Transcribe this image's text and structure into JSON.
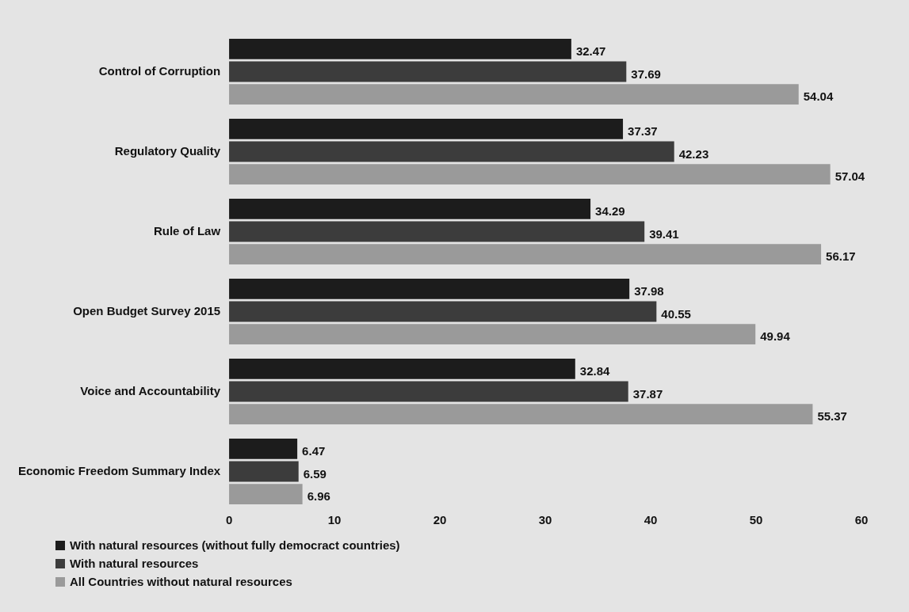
{
  "chart_data": {
    "type": "bar",
    "orientation": "horizontal",
    "categories": [
      "Control of Corruption",
      "Regulatory Quality",
      "Rule of Law",
      "Open Budget Survey 2015",
      "Voice and Accountability",
      "Economic Freedom Summary Index"
    ],
    "series": [
      {
        "name": "With natural resources (without fully democract countries)",
        "color": "#1c1c1c",
        "values": [
          32.47,
          37.37,
          34.29,
          37.98,
          32.84,
          6.47
        ]
      },
      {
        "name": "With natural resources",
        "color": "#3c3c3c",
        "values": [
          37.69,
          42.23,
          39.41,
          40.55,
          37.87,
          6.59
        ]
      },
      {
        "name": "All Countries without natural resources",
        "color": "#9a9a9a",
        "values": [
          54.04,
          57.04,
          56.17,
          49.94,
          55.37,
          6.96
        ]
      }
    ],
    "xlim": [
      0,
      60
    ],
    "xticks": [
      0,
      10,
      20,
      30,
      40,
      50,
      60
    ],
    "data_labels": true,
    "grid": false,
    "legend": "bottom left"
  }
}
